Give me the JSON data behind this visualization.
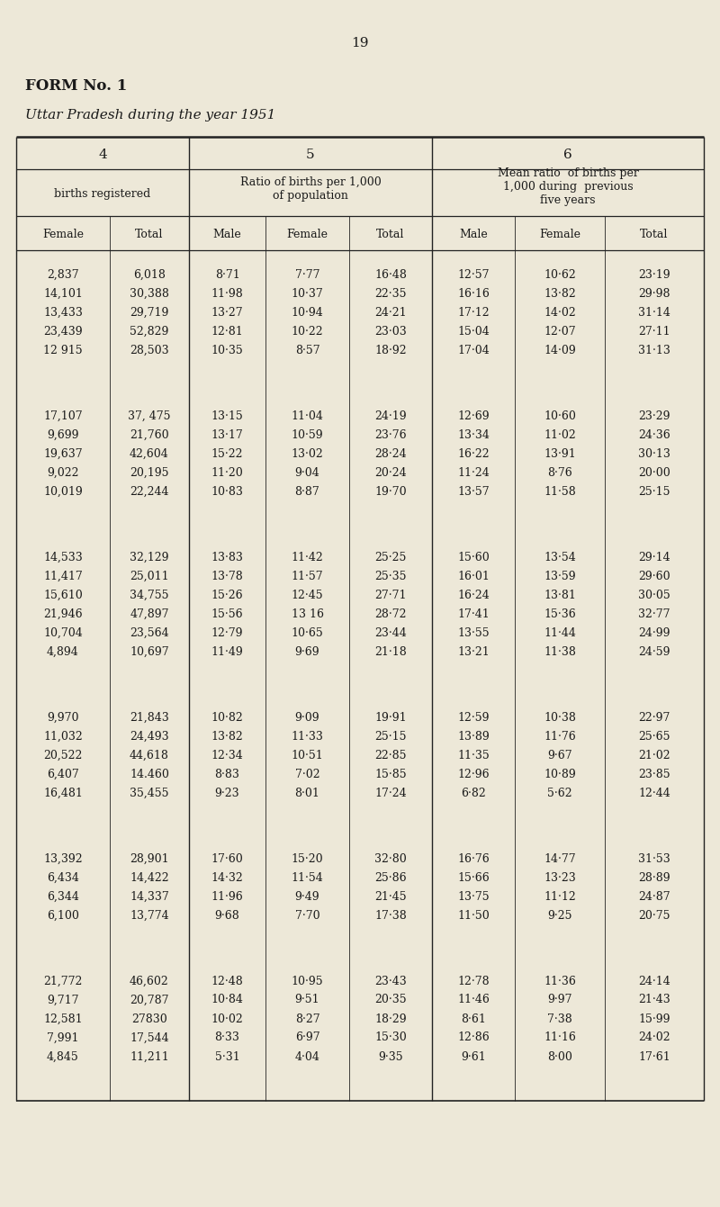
{
  "page_number": "19",
  "form_title": "FORM No. 1",
  "subtitle": "Uttar Pradesh during the year 1951",
  "col_group_4": "4",
  "col_group_5": "5",
  "col_group_6": "6",
  "col_header_4": "births registered",
  "col_header_5": "Ratio of births per 1,000\nof population",
  "col_header_6": "Mean ratio  of births per\n1,000 during  previous\nfive years",
  "subheaders_4": [
    "Female",
    "Total"
  ],
  "subheaders_5": [
    "Male",
    "Female",
    "Total"
  ],
  "subheaders_6": [
    "Male",
    "Female",
    "Total"
  ],
  "groups": [
    {
      "rows": [
        [
          "2,837",
          "6,018",
          "8·71",
          "7·77",
          "16·48",
          "12·57",
          "10·62",
          "23·19"
        ],
        [
          "14,101",
          "30,388",
          "11·98",
          "10·37",
          "22·35",
          "16·16",
          "13·82",
          "29·98"
        ],
        [
          "13,433",
          "29,719",
          "13·27",
          "10·94",
          "24·21",
          "17·12",
          "14·02",
          "31·14"
        ],
        [
          "23,439",
          "52,829",
          "12·81",
          "10·22",
          "23·03",
          "15·04",
          "12·07",
          "27·11"
        ],
        [
          "12 915",
          "28,503",
          "10·35",
          "8·57",
          "18·92",
          "17·04",
          "14·09",
          "31·13"
        ]
      ]
    },
    {
      "rows": [
        [
          "17,107",
          "37, 475",
          "13·15",
          "11·04",
          "24·19",
          "12·69",
          "10·60",
          "23·29"
        ],
        [
          "9,699",
          "21,760",
          "13·17",
          "10·59",
          "23·76",
          "13·34",
          "11·02",
          "24·36"
        ],
        [
          "19,637",
          "42,604",
          "15·22",
          "13·02",
          "28·24",
          "16·22",
          "13·91",
          "30·13"
        ],
        [
          "9,022",
          "20,195",
          "11·20",
          "9·04",
          "20·24",
          "11·24",
          "8·76",
          "20·00"
        ],
        [
          "10,019",
          "22,244",
          "10·83",
          "8·87",
          "19·70",
          "13·57",
          "11·58",
          "25·15"
        ]
      ]
    },
    {
      "rows": [
        [
          "14,533",
          "32,129",
          "13·83",
          "11·42",
          "25·25",
          "15·60",
          "13·54",
          "29·14"
        ],
        [
          "11,417",
          "25,011",
          "13·78",
          "11·57",
          "25·35",
          "16·01",
          "13·59",
          "29·60"
        ],
        [
          "15,610",
          "34,755",
          "15·26",
          "12·45",
          "27·71",
          "16·24",
          "13·81",
          "30·05"
        ],
        [
          "21,946",
          "47,897",
          "15·56",
          "13 16",
          "28·72",
          "17·41",
          "15·36",
          "32·77"
        ],
        [
          "10,704",
          "23,564",
          "12·79",
          "10·65",
          "23·44",
          "13·55",
          "11·44",
          "24·99"
        ],
        [
          "4,894",
          "10,697",
          "11·49",
          "9·69",
          "21·18",
          "13·21",
          "11·38",
          "24·59"
        ]
      ]
    },
    {
      "rows": [
        [
          "9,970",
          "21,843",
          "10·82",
          "9·09",
          "19·91",
          "12·59",
          "10·38",
          "22·97"
        ],
        [
          "11,032",
          "24,493",
          "13·82",
          "11·33",
          "25·15",
          "13·89",
          "11·76",
          "25·65"
        ],
        [
          "20,522",
          "44,618",
          "12·34",
          "10·51",
          "22·85",
          "11·35",
          "9·67",
          "21·02"
        ],
        [
          "6,407",
          "14.460",
          "8·83",
          "7·02",
          "15·85",
          "12·96",
          "10·89",
          "23·85"
        ],
        [
          "16,481",
          "35,455",
          "9·23",
          "8·01",
          "17·24",
          "6·82",
          "5·62",
          "12·44"
        ]
      ]
    },
    {
      "rows": [
        [
          "13,392",
          "28,901",
          "17·60",
          "15·20",
          "32·80",
          "16·76",
          "14·77",
          "31·53"
        ],
        [
          "6,434",
          "14,422",
          "14·32",
          "11·54",
          "25·86",
          "15·66",
          "13·23",
          "28·89"
        ],
        [
          "6,344",
          "14,337",
          "11·96",
          "9·49",
          "21·45",
          "13·75",
          "11·12",
          "24·87"
        ],
        [
          "6,100",
          "13,774",
          "9·68",
          "7·70",
          "17·38",
          "11·50",
          "9·25",
          "20·75"
        ]
      ]
    },
    {
      "rows": [
        [
          "21,772",
          "46,602",
          "12·48",
          "10·95",
          "23·43",
          "12·78",
          "11·36",
          "24·14"
        ],
        [
          "9,717",
          "20,787",
          "10·84",
          "9·51",
          "20·35",
          "11·46",
          "9·97",
          "21·43"
        ],
        [
          "12,581",
          "27830",
          "10·02",
          "8·27",
          "18·29",
          "8·61",
          "7·38",
          "15·99"
        ],
        [
          "7,991",
          "17,544",
          "8·33",
          "6·97",
          "15·30",
          "12·86",
          "11·16",
          "24·02"
        ],
        [
          "4,845",
          "11,211",
          "5·31",
          "4·04",
          "9·35",
          "9·61",
          "8·00",
          "17·61"
        ]
      ]
    }
  ],
  "bg_color": "#ede8d8",
  "text_color": "#1a1a1a",
  "line_color": "#222222"
}
